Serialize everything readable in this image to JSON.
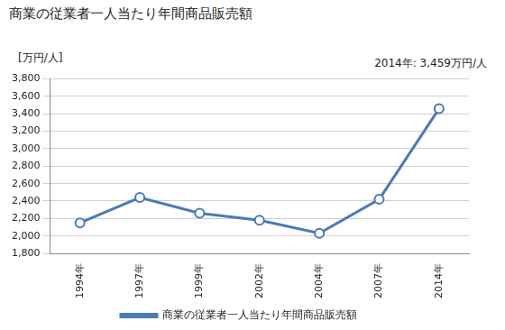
{
  "chart_data": {
    "type": "line",
    "title": "商業の従業者一人当たり年間商品販売額",
    "y_label": "[万円/人]",
    "annotation": "2014年: 3,459万円/人",
    "categories": [
      "1994年",
      "1997年",
      "1999年",
      "2002年",
      "2004年",
      "2007年",
      "2014年"
    ],
    "series": [
      {
        "name": "商業の従業者一人当たり年間商品販売額",
        "color": "#4a7ab8",
        "values": [
          2150,
          2440,
          2260,
          2180,
          2030,
          2420,
          3459
        ]
      }
    ],
    "ylim": [
      1800,
      3800
    ],
    "yticks": [
      {
        "value": 1800,
        "label": "1,800"
      },
      {
        "value": 2000,
        "label": "2,000"
      },
      {
        "value": 2200,
        "label": "2,200"
      },
      {
        "value": 2400,
        "label": "2,400"
      },
      {
        "value": 2600,
        "label": "2,600"
      },
      {
        "value": 2800,
        "label": "2,800"
      },
      {
        "value": 3000,
        "label": "3,000"
      },
      {
        "value": 3200,
        "label": "3,200"
      },
      {
        "value": 3400,
        "label": "3,400"
      },
      {
        "value": 3600,
        "label": "3,600"
      },
      {
        "value": 3800,
        "label": "3,800"
      }
    ],
    "grid": true,
    "legend": "bottom",
    "marker": "circle"
  }
}
